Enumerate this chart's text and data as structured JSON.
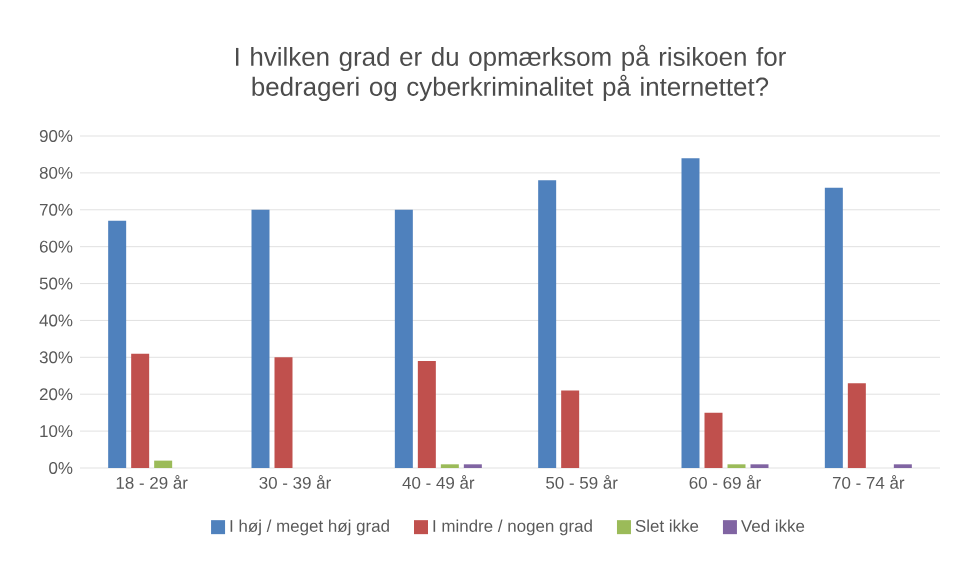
{
  "chart_data": {
    "type": "bar",
    "title": "I hvilken grad er du opmærksom på risikoen for bedrageri og cyberkriminalitet på internettet?",
    "categories": [
      "18 - 29 år",
      "30 - 39 år",
      "40 - 49 år",
      "50 - 59 år",
      "60 - 69 år",
      "70 - 74 år"
    ],
    "series": [
      {
        "name": "I høj / meget høj grad",
        "color": "#4f81bd",
        "values": [
          67,
          70,
          70,
          78,
          84,
          76
        ]
      },
      {
        "name": "I mindre / nogen grad",
        "color": "#c0504d",
        "values": [
          31,
          30,
          29,
          21,
          15,
          23
        ]
      },
      {
        "name": "Slet ikke",
        "color": "#9bbb59",
        "values": [
          2,
          0,
          1,
          0,
          1,
          0
        ]
      },
      {
        "name": "Ved ikke",
        "color": "#8064a2",
        "values": [
          0,
          0,
          1,
          0,
          1,
          1
        ]
      }
    ],
    "ylim": [
      0,
      90
    ],
    "yticks": [
      {
        "value": 0,
        "label": "0%"
      },
      {
        "value": 10,
        "label": "10%"
      },
      {
        "value": 20,
        "label": "20%"
      },
      {
        "value": 30,
        "label": "30%"
      },
      {
        "value": 40,
        "label": "40%"
      },
      {
        "value": 50,
        "label": "50%"
      },
      {
        "value": 60,
        "label": "60%"
      },
      {
        "value": 70,
        "label": "70%"
      },
      {
        "value": 80,
        "label": "80%"
      },
      {
        "value": 90,
        "label": "90%"
      }
    ],
    "grid": "y",
    "legend": "bottom"
  }
}
